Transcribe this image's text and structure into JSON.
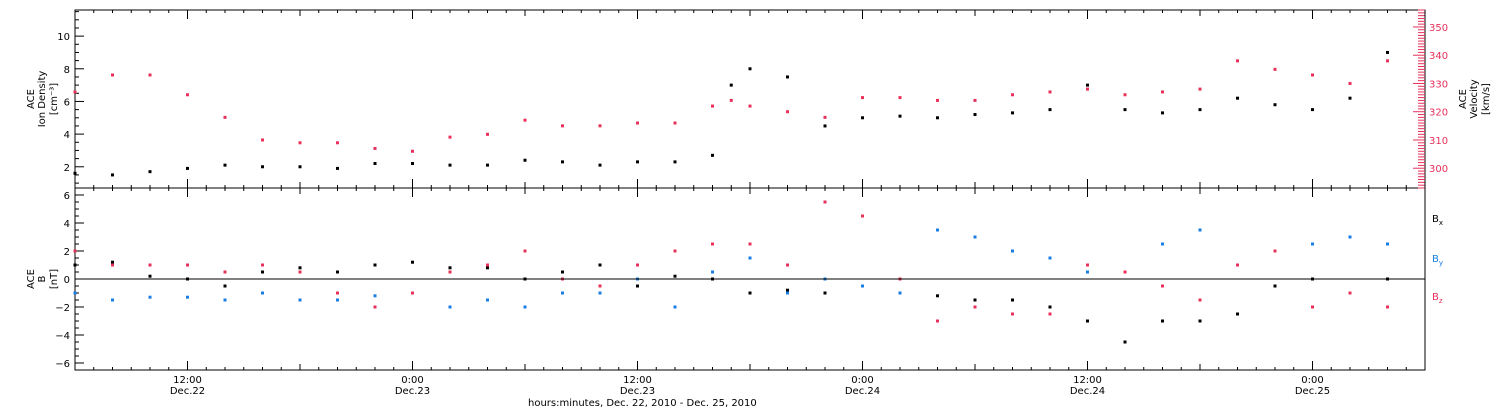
{
  "chart_data": [
    {
      "type": "scatter",
      "panel": "top",
      "left_axis": {
        "label_lines": [
          "ACE",
          "Ion Density",
          "[cm⁻³]"
        ],
        "ylim": [
          0.7,
          11.6
        ],
        "ticks": [
          2,
          4,
          6,
          8,
          10
        ],
        "color": "#000000"
      },
      "right_axis": {
        "label_lines": [
          "ACE",
          "Velocity",
          "[km/s]"
        ],
        "ylim": [
          293,
          356
        ],
        "ticks": [
          300,
          310,
          320,
          330,
          340,
          350
        ],
        "color": "#e8305a"
      },
      "xlim": [
        6,
        78
      ],
      "series": [
        {
          "axis": "left",
          "color": "#000000",
          "x": [
            6,
            8,
            10,
            12,
            14,
            16,
            18,
            20,
            22,
            24,
            26,
            28,
            30,
            32,
            34,
            36,
            38,
            40,
            41,
            42,
            44,
            46,
            48,
            50,
            52,
            54,
            56,
            58,
            60,
            62,
            64,
            66,
            68,
            70,
            72,
            74,
            76
          ],
          "y": [
            1.6,
            1.5,
            1.7,
            1.9,
            2.1,
            2.0,
            2.0,
            1.9,
            2.2,
            2.2,
            2.1,
            2.1,
            2.4,
            2.3,
            2.1,
            2.3,
            2.3,
            2.7,
            7.0,
            8.0,
            7.5,
            4.5,
            5.0,
            5.1,
            5.0,
            5.2,
            5.3,
            5.5,
            7.0,
            5.5,
            5.3,
            5.5,
            6.2,
            5.8,
            5.5,
            6.2,
            9.0
          ]
        },
        {
          "axis": "right",
          "color": "#e8305a",
          "x": [
            6,
            8,
            10,
            12,
            14,
            16,
            18,
            20,
            22,
            24,
            26,
            28,
            30,
            32,
            34,
            36,
            38,
            40,
            41,
            42,
            44,
            46,
            48,
            50,
            52,
            54,
            56,
            58,
            60,
            62,
            64,
            66,
            68,
            70,
            72,
            74,
            76
          ],
          "y": [
            327,
            333,
            333,
            326,
            318,
            310,
            309,
            309,
            307,
            306,
            311,
            312,
            317,
            315,
            315,
            316,
            316,
            322,
            324,
            322,
            320,
            318,
            325,
            325,
            324,
            324,
            326,
            327,
            328,
            326,
            327,
            328,
            338,
            335,
            333,
            330,
            338
          ]
        }
      ]
    },
    {
      "type": "scatter",
      "panel": "bottom",
      "left_axis": {
        "label_lines": [
          "ACE",
          "B",
          "[nT]"
        ],
        "ylim": [
          -6.5,
          6.5
        ],
        "ticks": [
          -6,
          -4,
          -2,
          0,
          2,
          4,
          6
        ],
        "color": "#000000"
      },
      "xlim": [
        6,
        78
      ],
      "zero_line": true,
      "legend": {
        "placement": "right",
        "entries": [
          {
            "base": "B",
            "sub": "x",
            "color": "#000000"
          },
          {
            "base": "B",
            "sub": "y",
            "color": "#1a7fe0"
          },
          {
            "base": "B",
            "sub": "z",
            "color": "#e8305a"
          }
        ]
      },
      "series": [
        {
          "name": "Bx",
          "color": "#000000",
          "x": [
            6,
            8,
            10,
            12,
            14,
            16,
            18,
            20,
            22,
            24,
            26,
            28,
            30,
            32,
            34,
            36,
            38,
            40,
            42,
            44,
            46,
            48,
            50,
            52,
            54,
            56,
            58,
            60,
            62,
            64,
            66,
            68,
            70,
            72,
            74,
            76
          ],
          "y": [
            1.0,
            1.2,
            0.2,
            0.0,
            -0.5,
            0.5,
            0.8,
            0.5,
            1.0,
            1.2,
            0.8,
            0.8,
            0.0,
            0.5,
            1.0,
            -0.5,
            0.2,
            0.0,
            -1.0,
            -0.8,
            -1.0,
            -0.5,
            -1.0,
            -1.2,
            -1.5,
            -1.5,
            -2.0,
            -3.0,
            -4.5,
            -3.0,
            -3.0,
            -2.5,
            -0.5,
            0.0,
            -1.0,
            0.0
          ]
        },
        {
          "name": "By",
          "color": "#1a7fe0",
          "x": [
            6,
            8,
            10,
            12,
            14,
            16,
            18,
            20,
            22,
            24,
            26,
            28,
            30,
            32,
            34,
            36,
            38,
            40,
            42,
            44,
            46,
            48,
            50,
            52,
            54,
            56,
            58,
            60,
            62,
            64,
            66,
            68,
            70,
            72,
            74,
            76
          ],
          "y": [
            -1.0,
            -1.5,
            -1.3,
            -1.3,
            -1.5,
            -1.0,
            -1.5,
            -1.5,
            -1.2,
            -1.0,
            -2.0,
            -1.5,
            -2.0,
            -1.0,
            -1.0,
            0.0,
            -2.0,
            0.5,
            1.5,
            -1.0,
            0.0,
            -0.5,
            -1.0,
            3.5,
            3.0,
            2.0,
            1.5,
            0.5,
            0.5,
            2.5,
            3.5,
            1.0,
            2.0,
            2.5,
            3.0,
            2.5
          ]
        },
        {
          "name": "Bz",
          "color": "#e8305a",
          "x": [
            6,
            8,
            10,
            12,
            14,
            16,
            18,
            20,
            22,
            24,
            26,
            28,
            30,
            32,
            34,
            36,
            38,
            40,
            42,
            44,
            46,
            48,
            50,
            52,
            54,
            56,
            58,
            60,
            62,
            64,
            66,
            68,
            70,
            72,
            74,
            76
          ],
          "y": [
            2.0,
            1.0,
            1.0,
            1.0,
            0.5,
            1.0,
            0.5,
            -1.0,
            -2.0,
            -1.0,
            0.5,
            1.0,
            2.0,
            0.0,
            -0.5,
            1.0,
            2.0,
            2.5,
            2.5,
            1.0,
            5.5,
            4.5,
            0.0,
            -3.0,
            -2.0,
            -2.5,
            -2.5,
            1.0,
            0.5,
            -0.5,
            -1.5,
            1.0,
            2.0,
            -2.0,
            -1.0,
            -2.0
          ]
        }
      ]
    }
  ],
  "time_axis": {
    "ticks": [
      {
        "x": 12,
        "line1": "12:00",
        "line2": "Dec.22"
      },
      {
        "x": 24,
        "line1": "0:00",
        "line2": "Dec.23"
      },
      {
        "x": 36,
        "line1": "12:00",
        "line2": "Dec.23"
      },
      {
        "x": 48,
        "line1": "0:00",
        "line2": "Dec.24"
      },
      {
        "x": 60,
        "line1": "12:00",
        "line2": "Dec.24"
      },
      {
        "x": 72,
        "line1": "0:00",
        "line2": "Dec.25"
      }
    ],
    "title": "hours:minutes, Dec. 22, 2010 - Dec. 25, 2010"
  }
}
